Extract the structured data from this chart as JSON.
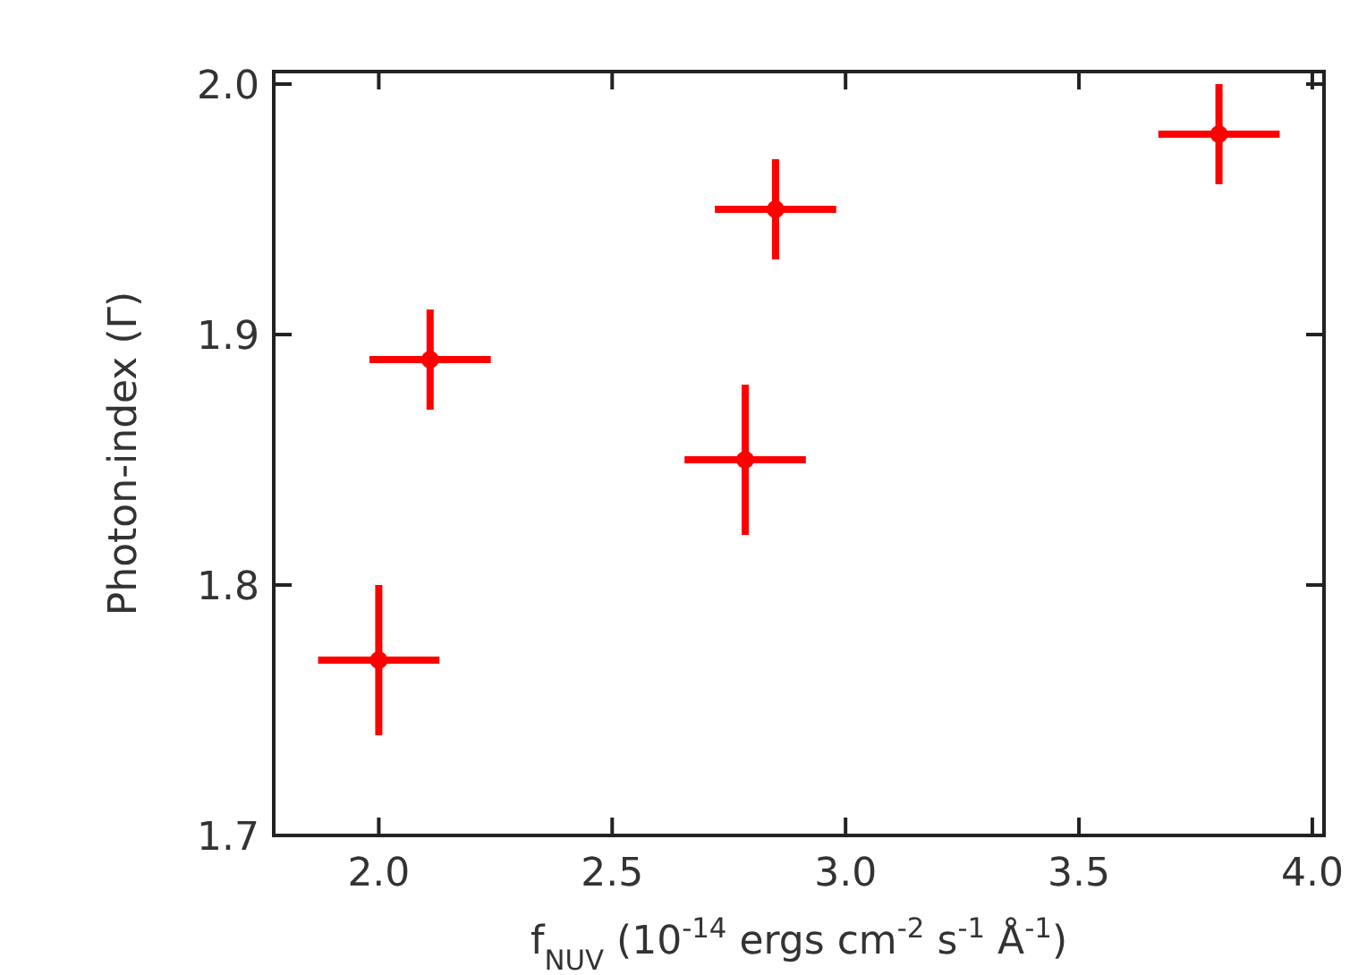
{
  "chart_data": {
    "type": "scatter",
    "xlabel": "f$_{NUV}$ (10$^{-14}$ ergs cm$^{-2}$ s$^{-1}$ Å$^{-1}$)",
    "ylabel": "Photon-index (Γ)",
    "x": [
      2.0,
      2.11,
      2.785,
      2.85,
      3.8
    ],
    "values": [
      1.77,
      1.89,
      1.85,
      1.95,
      1.98
    ],
    "errors": [
      0.03,
      0.02,
      0.03,
      0.02,
      0.02
    ],
    "xerrors": [
      0.13,
      0.13,
      0.13,
      0.13,
      0.13
    ],
    "color": "#ff0000",
    "marker": "circle",
    "xlim": [
      1.775,
      4.025
    ],
    "xticks": [
      {
        "value": 2,
        "label": "2.0"
      },
      2.5,
      {
        "value": 3,
        "label": "3.0"
      },
      3.5,
      {
        "value": 4,
        "label": "4.0"
      }
    ],
    "ylim": [
      1.7,
      2.005
    ],
    "yticks": [
      1.7,
      1.8,
      1.9,
      {
        "value": 2,
        "label": "2.0"
      }
    ],
    "grid": false
  }
}
